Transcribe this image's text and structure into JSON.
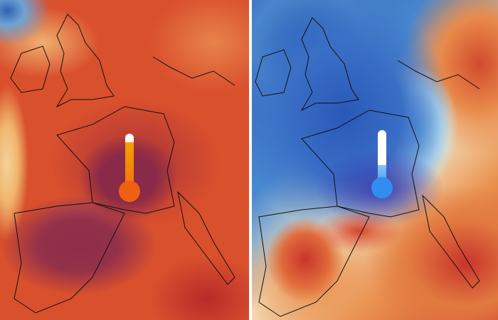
{
  "maps": {
    "left": {
      "theme": "heat anomaly",
      "thermometer_color": "#f07a10",
      "thermometer_level": 0.85
    },
    "right": {
      "theme": "cold anomaly",
      "thermometer_color": "#2f8ef0",
      "thermometer_level": 0.4
    }
  },
  "colors": {
    "hot": "#d9502d",
    "very_hot": "#8a2a48",
    "cold": "#2a58b8",
    "neutral": "#f4e8c8"
  }
}
